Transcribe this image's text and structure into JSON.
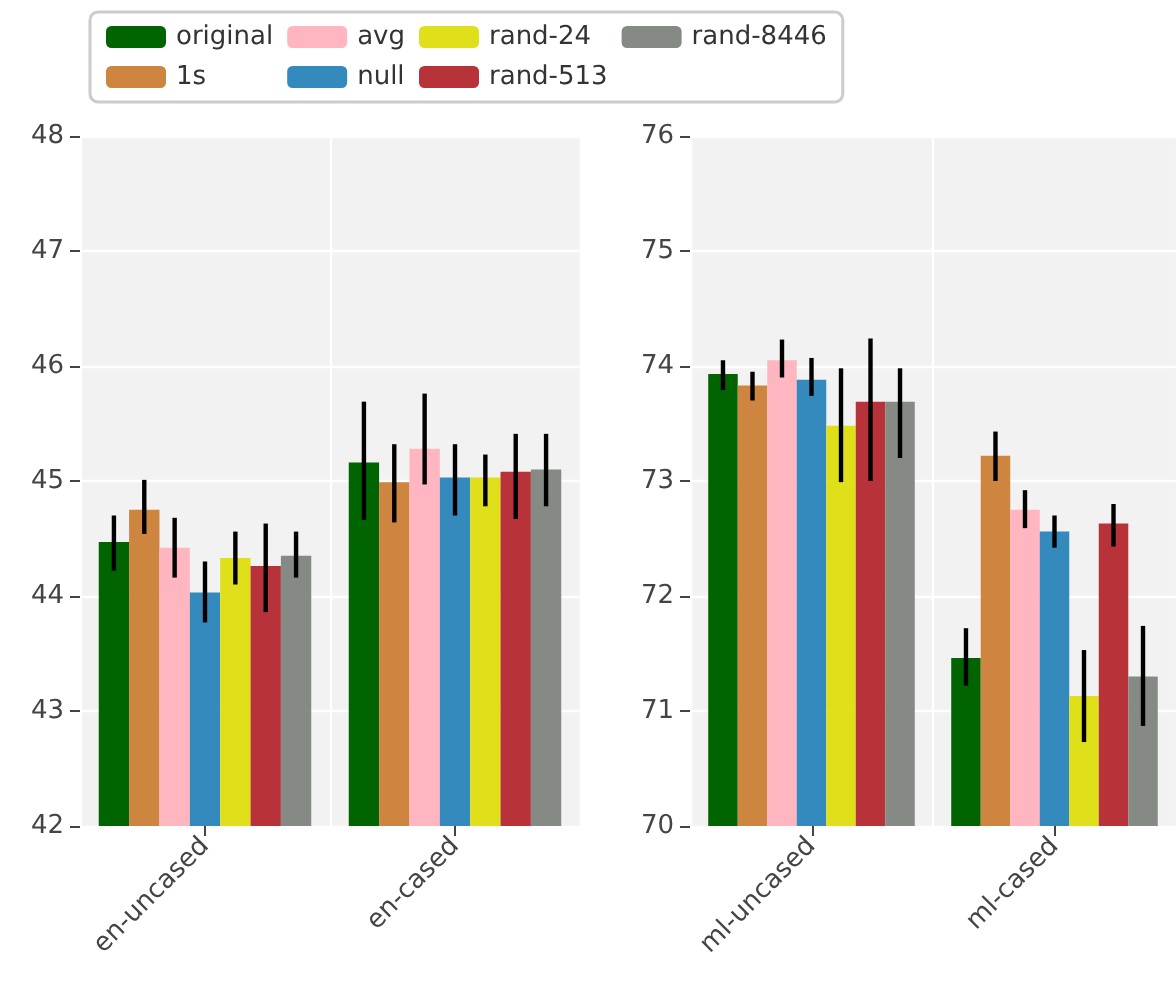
{
  "chart_data": [
    {
      "type": "bar",
      "categories": [
        "en-uncased",
        "en-cased"
      ],
      "ylim": [
        42,
        48
      ],
      "yticks": [
        42,
        43,
        44,
        45,
        46,
        47,
        48
      ],
      "grid": true,
      "legend": "top",
      "series": [
        {
          "name": "original",
          "color": "#006400",
          "values": [
            44.47,
            45.16
          ],
          "errors": [
            [
              44.22,
              44.7
            ],
            [
              44.66,
              45.69
            ]
          ]
        },
        {
          "name": "1s",
          "color": "#cd853f",
          "values": [
            44.75,
            44.99
          ],
          "errors": [
            [
              44.54,
              45.01
            ],
            [
              44.64,
              45.32
            ]
          ]
        },
        {
          "name": "avg",
          "color": "#ffb6c1",
          "values": [
            44.42,
            45.28
          ],
          "errors": [
            [
              44.16,
              44.68
            ],
            [
              44.97,
              45.76
            ]
          ]
        },
        {
          "name": "null",
          "color": "#348abd",
          "values": [
            44.03,
            45.03
          ],
          "errors": [
            [
              43.77,
              44.3
            ],
            [
              44.7,
              45.32
            ]
          ]
        },
        {
          "name": "rand-24",
          "color": "#e0e01a",
          "values": [
            44.33,
            45.03
          ],
          "errors": [
            [
              44.1,
              44.56
            ],
            [
              44.78,
              45.23
            ]
          ]
        },
        {
          "name": "rand-513",
          "color": "#b8323a",
          "values": [
            44.26,
            45.08
          ],
          "errors": [
            [
              43.86,
              44.63
            ],
            [
              44.67,
              45.41
            ]
          ]
        },
        {
          "name": "rand-8446",
          "color": "#868a84",
          "values": [
            44.35,
            45.1
          ],
          "errors": [
            [
              44.16,
              44.56
            ],
            [
              44.78,
              45.41
            ]
          ]
        }
      ]
    },
    {
      "type": "bar",
      "categories": [
        "ml-uncased",
        "ml-cased"
      ],
      "ylim": [
        70,
        76
      ],
      "yticks": [
        70,
        71,
        72,
        73,
        74,
        75,
        76
      ],
      "grid": true,
      "series": [
        {
          "color": "#006400",
          "values": [
            73.93,
            71.46
          ],
          "errors": [
            [
              73.79,
              74.05
            ],
            [
              71.22,
              71.72
            ]
          ]
        },
        {
          "color": "#cd853f",
          "values": [
            73.83,
            73.22
          ],
          "errors": [
            [
              73.7,
              73.95
            ],
            [
              73.0,
              73.43
            ]
          ]
        },
        {
          "color": "#ffb6c1",
          "values": [
            74.05,
            72.75
          ],
          "errors": [
            [
              73.9,
              74.23
            ],
            [
              72.59,
              72.92
            ]
          ]
        },
        {
          "color": "#348abd",
          "values": [
            73.88,
            72.56
          ],
          "errors": [
            [
              73.74,
              74.07
            ],
            [
              72.42,
              72.7
            ]
          ]
        },
        {
          "color": "#e0e01a",
          "values": [
            73.48,
            71.13
          ],
          "errors": [
            [
              72.99,
              73.98
            ],
            [
              70.73,
              71.53
            ]
          ]
        },
        {
          "color": "#b8323a",
          "values": [
            73.69,
            72.63
          ],
          "errors": [
            [
              73.0,
              74.24
            ],
            [
              72.43,
              72.8
            ]
          ]
        },
        {
          "color": "#868a84",
          "values": [
            73.69,
            71.3
          ],
          "errors": [
            [
              73.2,
              73.98
            ],
            [
              70.87,
              71.74
            ]
          ]
        }
      ]
    }
  ]
}
